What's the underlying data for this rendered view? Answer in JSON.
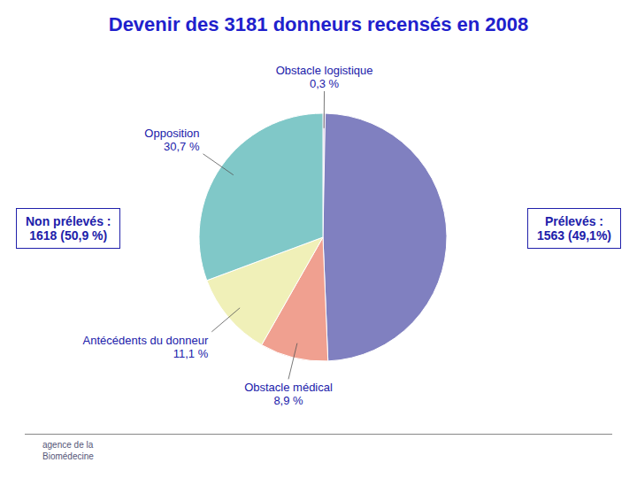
{
  "chart_data": {
    "type": "pie",
    "title": "Devenir des 3181 donneurs recensés en 2008",
    "categories": [
      "Obstacle logistique",
      null,
      "Obstacle médical",
      "Antécédents du donneur",
      "Opposition"
    ],
    "values": [
      0.3,
      49.1,
      8.9,
      11.1,
      30.7
    ],
    "value_labels": [
      "0,3 %",
      null,
      "8,9 %",
      "11,1 %",
      "30,7 %"
    ],
    "colors": [
      "#c8b0d8",
      "#8080c0",
      "#f0a090",
      "#f0f0b8",
      "#80c8c8"
    ],
    "annotations": [
      "Non prélevés :\n1618 (50,9 %)",
      "Prélevés :\n1563 (49,1%)",
      "agence de la\nBiomédecine"
    ]
  }
}
